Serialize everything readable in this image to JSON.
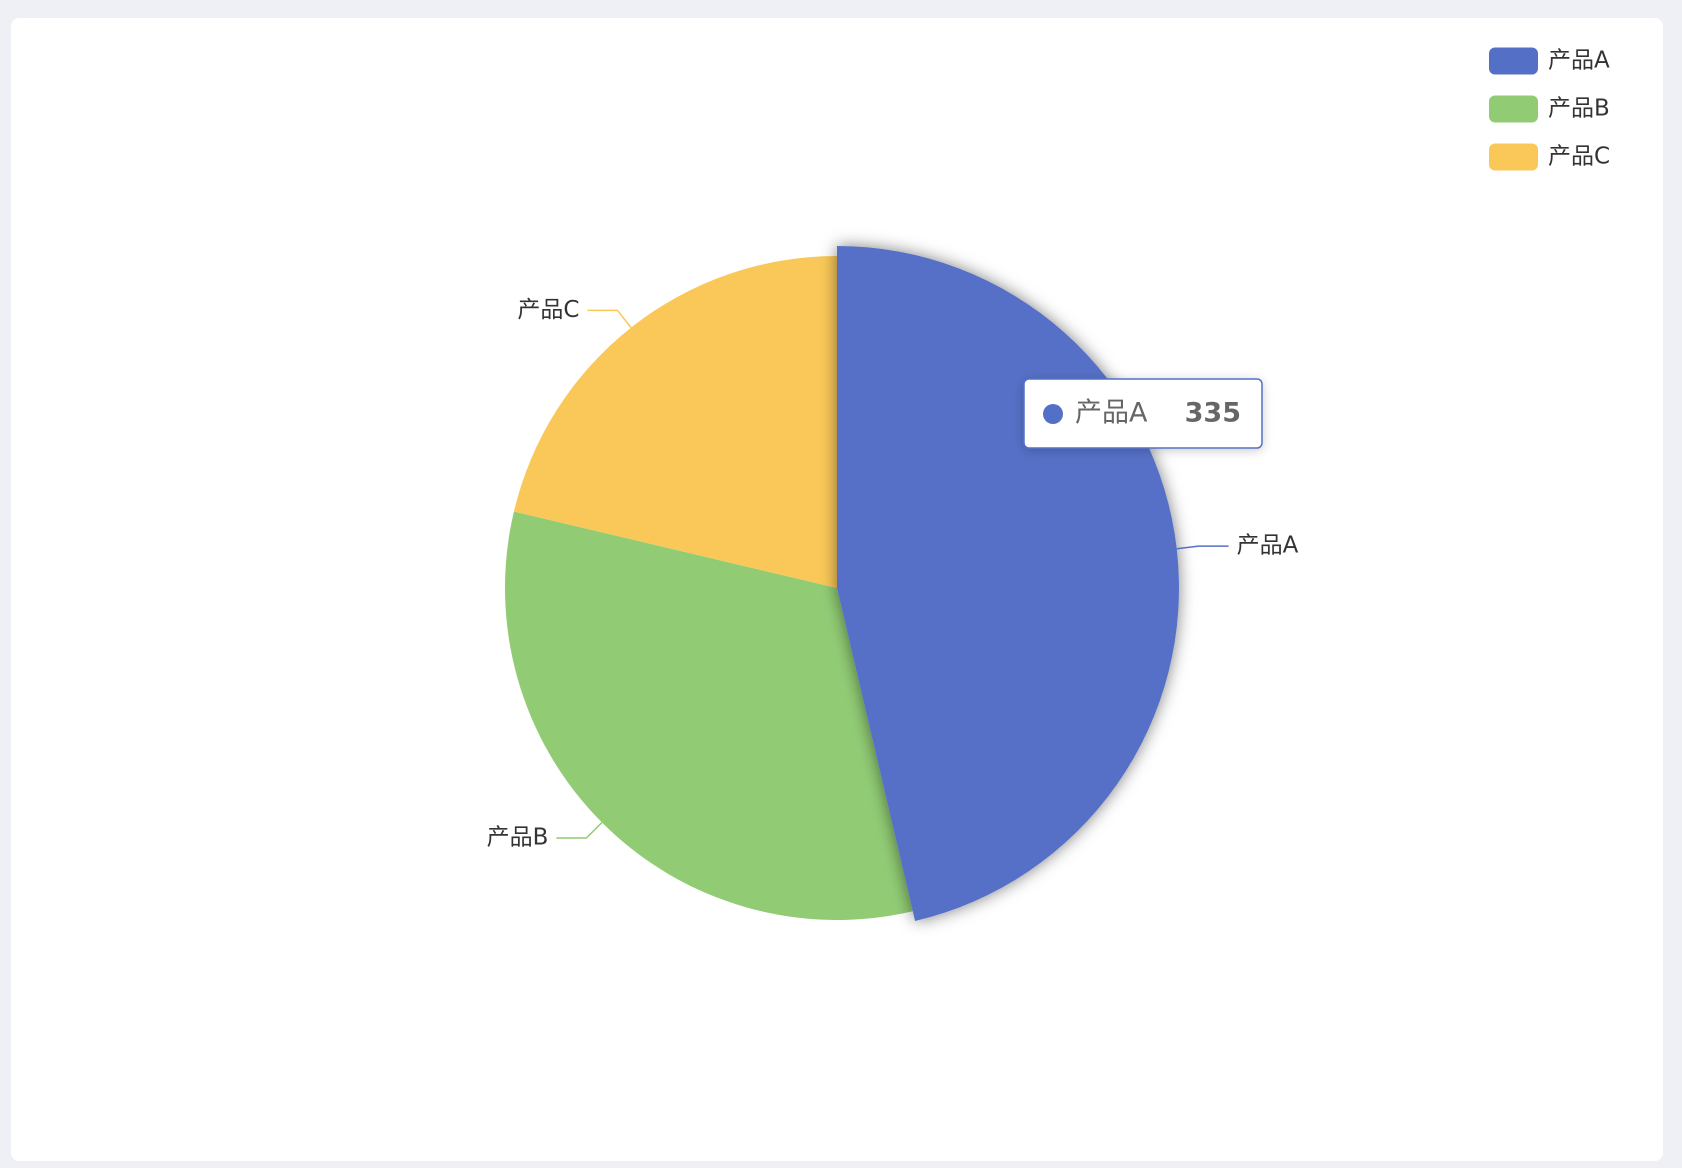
{
  "chart_data": {
    "type": "pie",
    "categories": [
      "产品A",
      "产品B",
      "产品C"
    ],
    "values": [
      335,
      234,
      154
    ],
    "colors": [
      "#5470c6",
      "#91cc75",
      "#fac858"
    ],
    "legend": "top-right"
  }
}
